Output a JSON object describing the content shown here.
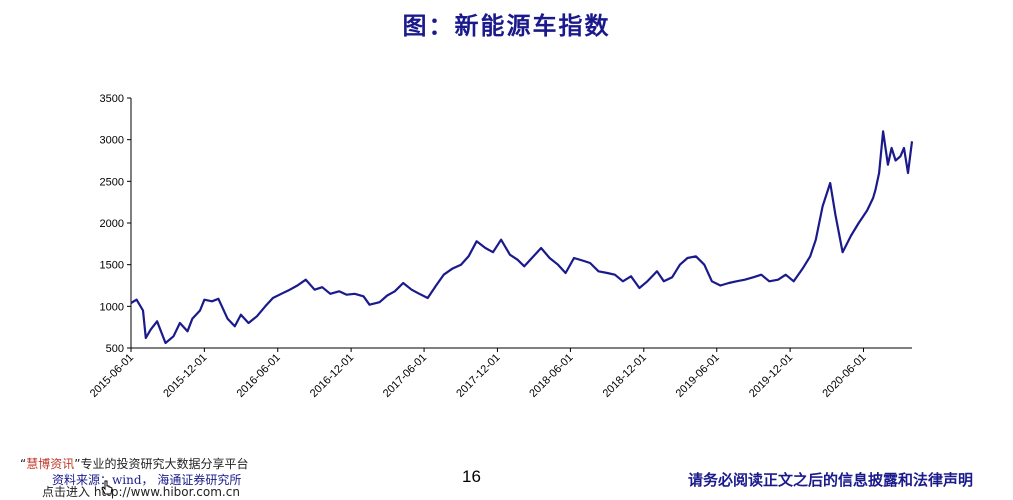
{
  "title": "图：新能源车指数",
  "footer": {
    "brand_open": "“",
    "brand": "慧博资讯",
    "brand_close": "”专业的投资研究大数据分享平台",
    "source": "资料来源：wind， 海通证券研究所",
    "link": "点击进入 http://www.hibor.com.cn",
    "page_number": "16",
    "disclaimer": "请务必阅读正文之后的信息披露和法律声明"
  },
  "colors": {
    "line": "#1a1a8c",
    "title": "#1a1a8c",
    "axis": "#000000"
  },
  "chart_data": {
    "type": "line",
    "title": "",
    "xlabel": "",
    "ylabel": "",
    "ylim": [
      500,
      3500
    ],
    "yticks": [
      500,
      1000,
      1500,
      2000,
      2500,
      3000,
      3500
    ],
    "xlim": [
      "2015-06-01",
      "2020-09-30"
    ],
    "xticks": [
      "2015-06-01",
      "2015-12-01",
      "2016-06-01",
      "2016-12-01",
      "2017-06-01",
      "2017-12-01",
      "2018-06-01",
      "2018-12-01",
      "2019-06-01",
      "2019-12-01",
      "2020-06-01"
    ],
    "grid": false,
    "legend": "none",
    "series": [
      {
        "x": [
          "2015-06-01",
          "2015-06-15",
          "2015-07-01",
          "2015-07-08",
          "2015-07-20",
          "2015-08-05",
          "2015-08-26",
          "2015-09-15",
          "2015-10-01",
          "2015-10-20",
          "2015-11-01",
          "2015-11-20",
          "2015-12-01",
          "2015-12-20",
          "2016-01-05",
          "2016-01-28",
          "2016-02-15",
          "2016-03-01",
          "2016-03-20",
          "2016-04-10",
          "2016-05-01",
          "2016-05-20",
          "2016-06-10",
          "2016-07-01",
          "2016-07-20",
          "2016-08-10",
          "2016-09-01",
          "2016-09-20",
          "2016-10-10",
          "2016-11-01",
          "2016-11-20",
          "2016-12-10",
          "2017-01-01",
          "2017-01-16",
          "2017-02-10",
          "2017-03-01",
          "2017-03-20",
          "2017-04-10",
          "2017-05-01",
          "2017-05-20",
          "2017-06-10",
          "2017-07-01",
          "2017-07-20",
          "2017-08-10",
          "2017-09-01",
          "2017-09-20",
          "2017-10-10",
          "2017-11-01",
          "2017-11-20",
          "2017-12-10",
          "2018-01-01",
          "2018-01-20",
          "2018-02-06",
          "2018-03-01",
          "2018-03-20",
          "2018-04-10",
          "2018-05-01",
          "2018-05-20",
          "2018-06-10",
          "2018-07-01",
          "2018-07-20",
          "2018-08-10",
          "2018-09-01",
          "2018-09-20",
          "2018-10-10",
          "2018-10-30",
          "2018-11-20",
          "2018-12-10",
          "2019-01-03",
          "2019-01-20",
          "2019-02-10",
          "2019-03-01",
          "2019-03-20",
          "2019-04-10",
          "2019-05-01",
          "2019-05-20",
          "2019-06-10",
          "2019-07-01",
          "2019-07-20",
          "2019-08-10",
          "2019-09-01",
          "2019-09-20",
          "2019-10-10",
          "2019-11-01",
          "2019-11-20",
          "2019-12-10",
          "2020-01-01",
          "2020-01-20",
          "2020-02-03",
          "2020-02-20",
          "2020-03-10",
          "2020-03-23",
          "2020-04-10",
          "2020-05-01",
          "2020-05-20",
          "2020-06-10",
          "2020-06-25",
          "2020-07-01",
          "2020-07-10",
          "2020-07-20",
          "2020-08-01",
          "2020-08-10",
          "2020-08-20",
          "2020-09-01",
          "2020-09-10",
          "2020-09-20",
          "2020-09-30"
        ],
        "y": [
          1040,
          1080,
          950,
          620,
          720,
          820,
          560,
          640,
          800,
          700,
          850,
          950,
          1080,
          1060,
          1090,
          850,
          760,
          900,
          800,
          880,
          1000,
          1100,
          1150,
          1200,
          1250,
          1320,
          1200,
          1230,
          1150,
          1180,
          1140,
          1150,
          1120,
          1020,
          1050,
          1130,
          1180,
          1280,
          1200,
          1150,
          1100,
          1250,
          1380,
          1450,
          1500,
          1600,
          1780,
          1700,
          1650,
          1800,
          1620,
          1560,
          1480,
          1600,
          1700,
          1580,
          1500,
          1400,
          1580,
          1550,
          1520,
          1420,
          1400,
          1380,
          1300,
          1360,
          1220,
          1300,
          1420,
          1300,
          1350,
          1500,
          1580,
          1600,
          1500,
          1300,
          1250,
          1280,
          1300,
          1320,
          1350,
          1380,
          1300,
          1320,
          1380,
          1300,
          1450,
          1600,
          1800,
          2200,
          2480,
          2100,
          1650,
          1850,
          2000,
          2150,
          2300,
          2400,
          2600,
          3100,
          2700,
          2900,
          2750,
          2800,
          2900,
          2600,
          2980
        ]
      }
    ]
  }
}
